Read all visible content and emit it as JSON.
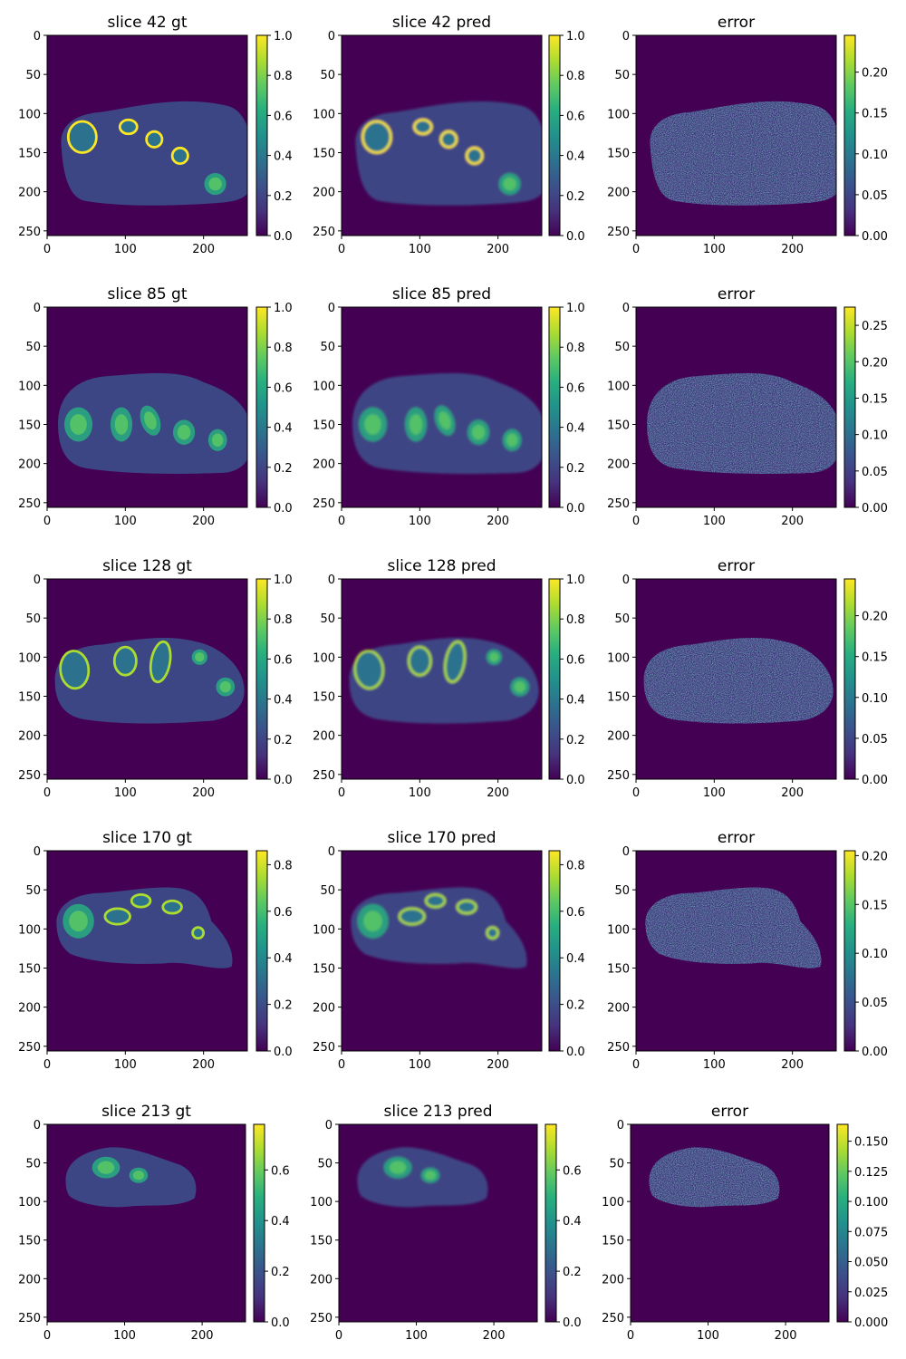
{
  "figure": {
    "background": "#ffffff",
    "colormap": "viridis"
  },
  "chart_data": [
    {
      "type": "heatmap",
      "title": "slice 42 gt",
      "slice": 42,
      "kind": "gt",
      "xlim": [
        0,
        256
      ],
      "ylim": [
        256,
        0
      ],
      "xticks": [
        0,
        100,
        200
      ],
      "yticks": [
        0,
        50,
        100,
        150,
        200,
        250
      ],
      "colorbar": {
        "range": [
          0,
          1.0
        ],
        "ticks": [
          "0.0",
          "0.2",
          "0.4",
          "0.6",
          "0.8",
          "1.0"
        ]
      }
    },
    {
      "type": "heatmap",
      "title": "slice 42 pred",
      "slice": 42,
      "kind": "pred",
      "xlim": [
        0,
        256
      ],
      "ylim": [
        256,
        0
      ],
      "xticks": [
        0,
        100,
        200
      ],
      "yticks": [
        0,
        50,
        100,
        150,
        200,
        250
      ],
      "colorbar": {
        "range": [
          0,
          1.0
        ],
        "ticks": [
          "0.0",
          "0.2",
          "0.4",
          "0.6",
          "0.8",
          "1.0"
        ]
      }
    },
    {
      "type": "heatmap",
      "title": "error",
      "slice": 42,
      "kind": "error",
      "xlim": [
        0,
        256
      ],
      "ylim": [
        256,
        0
      ],
      "xticks": [
        0,
        100,
        200
      ],
      "yticks": [
        0,
        50,
        100,
        150,
        200,
        250
      ],
      "colorbar": {
        "range": [
          0,
          0.245
        ],
        "ticks": [
          "0.00",
          "0.05",
          "0.10",
          "0.15",
          "0.20"
        ]
      }
    },
    {
      "type": "heatmap",
      "title": "slice 85 gt",
      "slice": 85,
      "kind": "gt",
      "xlim": [
        0,
        256
      ],
      "ylim": [
        256,
        0
      ],
      "xticks": [
        0,
        100,
        200
      ],
      "yticks": [
        0,
        50,
        100,
        150,
        200,
        250
      ],
      "colorbar": {
        "range": [
          0,
          1.0
        ],
        "ticks": [
          "0.0",
          "0.2",
          "0.4",
          "0.6",
          "0.8",
          "1.0"
        ]
      }
    },
    {
      "type": "heatmap",
      "title": "slice 85 pred",
      "slice": 85,
      "kind": "pred",
      "xlim": [
        0,
        256
      ],
      "ylim": [
        256,
        0
      ],
      "xticks": [
        0,
        100,
        200
      ],
      "yticks": [
        0,
        50,
        100,
        150,
        200,
        250
      ],
      "colorbar": {
        "range": [
          0,
          1.0
        ],
        "ticks": [
          "0.0",
          "0.2",
          "0.4",
          "0.6",
          "0.8",
          "1.0"
        ]
      }
    },
    {
      "type": "heatmap",
      "title": "error",
      "slice": 85,
      "kind": "error",
      "xlim": [
        0,
        256
      ],
      "ylim": [
        256,
        0
      ],
      "xticks": [
        0,
        100,
        200
      ],
      "yticks": [
        0,
        50,
        100,
        150,
        200,
        250
      ],
      "colorbar": {
        "range": [
          0,
          0.275
        ],
        "ticks": [
          "0.00",
          "0.05",
          "0.10",
          "0.15",
          "0.20",
          "0.25"
        ]
      }
    },
    {
      "type": "heatmap",
      "title": "slice 128 gt",
      "slice": 128,
      "kind": "gt",
      "xlim": [
        0,
        256
      ],
      "ylim": [
        256,
        0
      ],
      "xticks": [
        0,
        100,
        200
      ],
      "yticks": [
        0,
        50,
        100,
        150,
        200,
        250
      ],
      "colorbar": {
        "range": [
          0,
          1.0
        ],
        "ticks": [
          "0.0",
          "0.2",
          "0.4",
          "0.6",
          "0.8",
          "1.0"
        ]
      }
    },
    {
      "type": "heatmap",
      "title": "slice 128 pred",
      "slice": 128,
      "kind": "pred",
      "xlim": [
        0,
        256
      ],
      "ylim": [
        256,
        0
      ],
      "xticks": [
        0,
        100,
        200
      ],
      "yticks": [
        0,
        50,
        100,
        150,
        200,
        250
      ],
      "colorbar": {
        "range": [
          0,
          1.0
        ],
        "ticks": [
          "0.0",
          "0.2",
          "0.4",
          "0.6",
          "0.8",
          "1.0"
        ]
      }
    },
    {
      "type": "heatmap",
      "title": "error",
      "slice": 128,
      "kind": "error",
      "xlim": [
        0,
        256
      ],
      "ylim": [
        256,
        0
      ],
      "xticks": [
        0,
        100,
        200
      ],
      "yticks": [
        0,
        50,
        100,
        150,
        200,
        250
      ],
      "colorbar": {
        "range": [
          0,
          0.245
        ],
        "ticks": [
          "0.00",
          "0.05",
          "0.10",
          "0.15",
          "0.20"
        ]
      }
    },
    {
      "type": "heatmap",
      "title": "slice 170 gt",
      "slice": 170,
      "kind": "gt",
      "xlim": [
        0,
        256
      ],
      "ylim": [
        256,
        0
      ],
      "xticks": [
        0,
        100,
        200
      ],
      "yticks": [
        0,
        50,
        100,
        150,
        200,
        250
      ],
      "colorbar": {
        "range": [
          0,
          0.86
        ],
        "ticks": [
          "0.0",
          "0.2",
          "0.4",
          "0.6",
          "0.8"
        ]
      }
    },
    {
      "type": "heatmap",
      "title": "slice 170 pred",
      "slice": 170,
      "kind": "pred",
      "xlim": [
        0,
        256
      ],
      "ylim": [
        256,
        0
      ],
      "xticks": [
        0,
        100,
        200
      ],
      "yticks": [
        0,
        50,
        100,
        150,
        200,
        250
      ],
      "colorbar": {
        "range": [
          0,
          0.86
        ],
        "ticks": [
          "0.0",
          "0.2",
          "0.4",
          "0.6",
          "0.8"
        ]
      }
    },
    {
      "type": "heatmap",
      "title": "error",
      "slice": 170,
      "kind": "error",
      "xlim": [
        0,
        256
      ],
      "ylim": [
        256,
        0
      ],
      "xticks": [
        0,
        100,
        200
      ],
      "yticks": [
        0,
        50,
        100,
        150,
        200,
        250
      ],
      "colorbar": {
        "range": [
          0,
          0.205
        ],
        "ticks": [
          "0.00",
          "0.05",
          "0.10",
          "0.15",
          "0.20"
        ]
      }
    },
    {
      "type": "heatmap",
      "title": "slice 213 gt",
      "slice": 213,
      "kind": "gt",
      "xlim": [
        0,
        256
      ],
      "ylim": [
        256,
        0
      ],
      "xticks": [
        0,
        100,
        200
      ],
      "yticks": [
        0,
        50,
        100,
        150,
        200,
        250
      ],
      "colorbar": {
        "range": [
          0,
          0.78
        ],
        "ticks": [
          "0.0",
          "0.2",
          "0.4",
          "0.6"
        ]
      }
    },
    {
      "type": "heatmap",
      "title": "slice 213 pred",
      "slice": 213,
      "kind": "pred",
      "xlim": [
        0,
        256
      ],
      "ylim": [
        256,
        0
      ],
      "xticks": [
        0,
        100,
        200
      ],
      "yticks": [
        0,
        50,
        100,
        150,
        200,
        250
      ],
      "colorbar": {
        "range": [
          0,
          0.78
        ],
        "ticks": [
          "0.0",
          "0.2",
          "0.4",
          "0.6"
        ]
      }
    },
    {
      "type": "heatmap",
      "title": "error",
      "slice": 213,
      "kind": "error",
      "xlim": [
        0,
        256
      ],
      "ylim": [
        256,
        0
      ],
      "xticks": [
        0,
        100,
        200
      ],
      "yticks": [
        0,
        50,
        100,
        150,
        200,
        250
      ],
      "colorbar": {
        "range": [
          0,
          0.164
        ],
        "ticks": [
          "0.000",
          "0.025",
          "0.050",
          "0.075",
          "0.100",
          "0.125",
          "0.150"
        ]
      }
    }
  ]
}
